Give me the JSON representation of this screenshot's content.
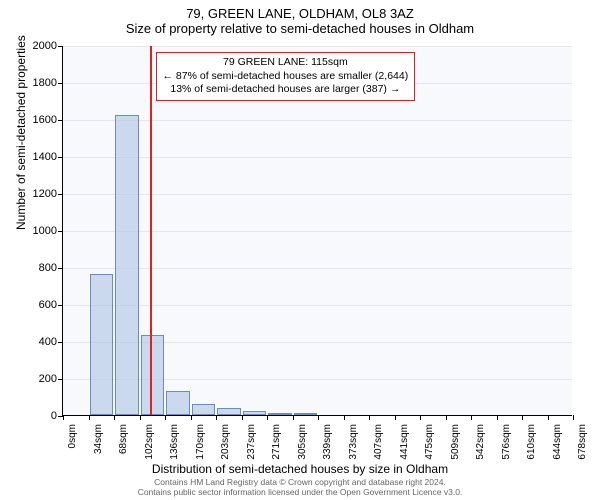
{
  "title": "79, GREEN LANE, OLDHAM, OL8 3AZ",
  "subtitle": "Size of property relative to semi-detached houses in Oldham",
  "y_axis_label": "Number of semi-detached properties",
  "x_axis_label": "Distribution of semi-detached houses by size in Oldham",
  "plot_bg": "#f7f9fc",
  "grid_color": "#e3e6ec",
  "bar_fill": "rgba(180,200,230,0.65)",
  "bar_stroke": "rgba(100,130,180,0.9)",
  "marker_color": "#d22",
  "y": {
    "min": 0,
    "max": 2000,
    "step": 200
  },
  "x_ticks": [
    "0sqm",
    "34sqm",
    "68sqm",
    "102sqm",
    "136sqm",
    "170sqm",
    "203sqm",
    "237sqm",
    "271sqm",
    "305sqm",
    "339sqm",
    "373sqm",
    "407sqm",
    "441sqm",
    "475sqm",
    "509sqm",
    "542sqm",
    "576sqm",
    "610sqm",
    "644sqm",
    "678sqm"
  ],
  "marker_value_sqm": 115,
  "x_max_sqm": 678,
  "bars": [
    {
      "x_sqm": 34,
      "count": 0
    },
    {
      "x_sqm": 68,
      "count": 760
    },
    {
      "x_sqm": 102,
      "count": 1620
    },
    {
      "x_sqm": 136,
      "count": 430
    },
    {
      "x_sqm": 170,
      "count": 130
    },
    {
      "x_sqm": 203,
      "count": 60
    },
    {
      "x_sqm": 237,
      "count": 40
    },
    {
      "x_sqm": 271,
      "count": 20
    },
    {
      "x_sqm": 305,
      "count": 10
    },
    {
      "x_sqm": 339,
      "count": 5
    },
    {
      "x_sqm": 373,
      "count": 0
    },
    {
      "x_sqm": 407,
      "count": 0
    },
    {
      "x_sqm": 441,
      "count": 0
    },
    {
      "x_sqm": 475,
      "count": 0
    },
    {
      "x_sqm": 509,
      "count": 0
    },
    {
      "x_sqm": 542,
      "count": 0
    },
    {
      "x_sqm": 576,
      "count": 0
    },
    {
      "x_sqm": 610,
      "count": 0
    },
    {
      "x_sqm": 644,
      "count": 0
    },
    {
      "x_sqm": 678,
      "count": 0
    }
  ],
  "callout": {
    "line1": "79 GREEN LANE: 115sqm",
    "line2": "← 87% of semi-detached houses are smaller (2,644)",
    "line3": "13% of semi-detached houses are larger (387) →"
  },
  "footer_line1": "Contains HM Land Registry data © Crown copyright and database right 2024.",
  "footer_line2": "Contains public sector information licensed under the Open Government Licence v3.0.",
  "fonts": {
    "title": 13,
    "axis_label": 12,
    "tick": 11,
    "xtick": 10,
    "callout": 10.5,
    "footer": 8.5
  }
}
